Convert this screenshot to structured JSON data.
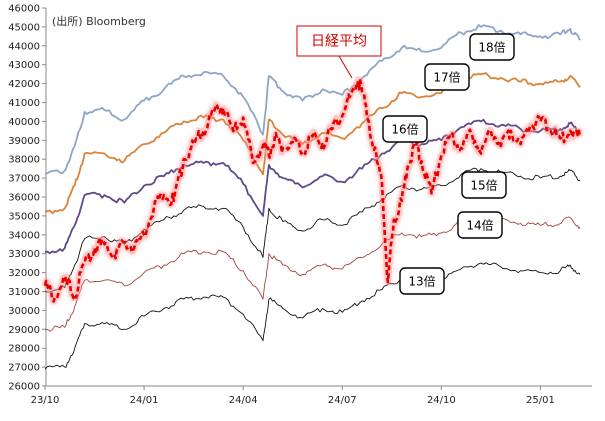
{
  "chart_data": {
    "type": "line",
    "source_note": "(出所) Bloomberg",
    "ylim": [
      26000,
      46000
    ],
    "yticks": [
      26000,
      27000,
      28000,
      29000,
      30000,
      31000,
      32000,
      33000,
      34000,
      35000,
      36000,
      37000,
      38000,
      39000,
      40000,
      41000,
      42000,
      43000,
      44000,
      45000,
      46000
    ],
    "xlim": [
      0,
      27.5
    ],
    "xticks": [
      {
        "label": "23/10",
        "x": 0
      },
      {
        "label": "24/01",
        "x": 5
      },
      {
        "label": "24/04",
        "x": 10
      },
      {
        "label": "24/07",
        "x": 15
      },
      {
        "label": "24/10",
        "x": 20
      },
      {
        "label": "25/01",
        "x": 25
      }
    ],
    "grid": false,
    "series": [
      {
        "name": "18倍",
        "color": "#8ea5c8",
        "width": 1.8,
        "points": [
          [
            0,
            37200
          ],
          [
            1,
            37400
          ],
          [
            1.5,
            38700
          ],
          [
            2,
            40500
          ],
          [
            3,
            40600
          ],
          [
            4,
            40100
          ],
          [
            5,
            41100
          ],
          [
            6,
            41700
          ],
          [
            7,
            42400
          ],
          [
            8,
            42600
          ],
          [
            9,
            42400
          ],
          [
            10,
            41300
          ],
          [
            11,
            39300
          ],
          [
            11.3,
            42400
          ],
          [
            12,
            41600
          ],
          [
            13,
            41100
          ],
          [
            14,
            41700
          ],
          [
            15,
            41400
          ],
          [
            16,
            42300
          ],
          [
            17,
            43200
          ],
          [
            18,
            43900
          ],
          [
            19,
            43700
          ],
          [
            20,
            43900
          ],
          [
            21,
            44700
          ],
          [
            22,
            45000
          ],
          [
            23,
            44800
          ],
          [
            24,
            44600
          ],
          [
            25,
            44500
          ],
          [
            26,
            44600
          ],
          [
            26.5,
            44900
          ],
          [
            27,
            44300
          ]
        ]
      },
      {
        "name": "17倍",
        "color": "#d9833b",
        "width": 1.8,
        "points": [
          [
            0,
            35200
          ],
          [
            1,
            35400
          ],
          [
            1.5,
            36600
          ],
          [
            2,
            38300
          ],
          [
            3,
            38300
          ],
          [
            4,
            37900
          ],
          [
            5,
            38800
          ],
          [
            6,
            39400
          ],
          [
            7,
            40000
          ],
          [
            8,
            40200
          ],
          [
            9,
            40100
          ],
          [
            10,
            39000
          ],
          [
            11,
            37200
          ],
          [
            11.3,
            40100
          ],
          [
            12,
            39300
          ],
          [
            13,
            38800
          ],
          [
            14,
            39400
          ],
          [
            15,
            39100
          ],
          [
            16,
            39900
          ],
          [
            17,
            40700
          ],
          [
            18,
            41500
          ],
          [
            19,
            41300
          ],
          [
            20,
            41500
          ],
          [
            21,
            42200
          ],
          [
            22,
            42500
          ],
          [
            23,
            42300
          ],
          [
            24,
            42100
          ],
          [
            25,
            42000
          ],
          [
            26,
            42100
          ],
          [
            26.5,
            42400
          ],
          [
            27,
            41800
          ]
        ]
      },
      {
        "name": "16倍",
        "color": "#5e4a8b",
        "width": 1.8,
        "points": [
          [
            0,
            33100
          ],
          [
            1,
            33300
          ],
          [
            1.5,
            34500
          ],
          [
            2,
            36100
          ],
          [
            3,
            36100
          ],
          [
            4,
            35700
          ],
          [
            5,
            36600
          ],
          [
            6,
            37100
          ],
          [
            7,
            37700
          ],
          [
            8,
            37800
          ],
          [
            9,
            37800
          ],
          [
            10,
            36700
          ],
          [
            11,
            35000
          ],
          [
            11.3,
            37700
          ],
          [
            12,
            37000
          ],
          [
            13,
            36500
          ],
          [
            14,
            37100
          ],
          [
            15,
            36800
          ],
          [
            16,
            37500
          ],
          [
            17,
            38300
          ],
          [
            18,
            39000
          ],
          [
            19,
            38800
          ],
          [
            20,
            39000
          ],
          [
            21,
            39700
          ],
          [
            22,
            40000
          ],
          [
            23,
            39800
          ],
          [
            24,
            39600
          ],
          [
            25,
            39500
          ],
          [
            26,
            39600
          ],
          [
            26.5,
            39900
          ],
          [
            27,
            39300
          ]
        ]
      },
      {
        "name": "15倍",
        "color": "#111111",
        "width": 0.9,
        "points": [
          [
            0,
            31000
          ],
          [
            1,
            31200
          ],
          [
            1.5,
            32400
          ],
          [
            2,
            33800
          ],
          [
            3,
            33900
          ],
          [
            4,
            33500
          ],
          [
            5,
            34300
          ],
          [
            6,
            34800
          ],
          [
            7,
            35300
          ],
          [
            8,
            35500
          ],
          [
            9,
            35400
          ],
          [
            10,
            34400
          ],
          [
            11,
            32800
          ],
          [
            11.3,
            35400
          ],
          [
            12,
            34700
          ],
          [
            13,
            34200
          ],
          [
            14,
            34800
          ],
          [
            15,
            34500
          ],
          [
            16,
            35200
          ],
          [
            17,
            35900
          ],
          [
            18,
            36600
          ],
          [
            19,
            36400
          ],
          [
            20,
            36600
          ],
          [
            21,
            37200
          ],
          [
            22,
            37500
          ],
          [
            23,
            37300
          ],
          [
            24,
            37100
          ],
          [
            25,
            37000
          ],
          [
            26,
            37100
          ],
          [
            26.5,
            37400
          ],
          [
            27,
            36900
          ]
        ]
      },
      {
        "name": "14倍",
        "color": "#a3453f",
        "width": 0.9,
        "points": [
          [
            0,
            29000
          ],
          [
            1,
            29100
          ],
          [
            1.5,
            30200
          ],
          [
            2,
            31600
          ],
          [
            3,
            31600
          ],
          [
            4,
            31300
          ],
          [
            5,
            32000
          ],
          [
            6,
            32400
          ],
          [
            7,
            33000
          ],
          [
            8,
            33100
          ],
          [
            9,
            33100
          ],
          [
            10,
            32100
          ],
          [
            11,
            30600
          ],
          [
            11.3,
            33000
          ],
          [
            12,
            32400
          ],
          [
            13,
            31900
          ],
          [
            14,
            32400
          ],
          [
            15,
            32200
          ],
          [
            16,
            32800
          ],
          [
            17,
            33500
          ],
          [
            18,
            34100
          ],
          [
            19,
            33900
          ],
          [
            20,
            34100
          ],
          [
            21,
            34700
          ],
          [
            22,
            35000
          ],
          [
            23,
            34800
          ],
          [
            24,
            34600
          ],
          [
            25,
            34500
          ],
          [
            26,
            34600
          ],
          [
            26.5,
            34900
          ],
          [
            27,
            34400
          ]
        ]
      },
      {
        "name": "13倍",
        "color": "#111111",
        "width": 0.9,
        "points": [
          [
            0,
            26900
          ],
          [
            1,
            27000
          ],
          [
            1.5,
            28000
          ],
          [
            2,
            29300
          ],
          [
            3,
            29300
          ],
          [
            4,
            29000
          ],
          [
            5,
            29700
          ],
          [
            6,
            30100
          ],
          [
            7,
            30600
          ],
          [
            8,
            30700
          ],
          [
            9,
            30700
          ],
          [
            10,
            29800
          ],
          [
            11,
            28400
          ],
          [
            11.3,
            30600
          ],
          [
            12,
            30100
          ],
          [
            13,
            29600
          ],
          [
            14,
            30100
          ],
          [
            15,
            29900
          ],
          [
            16,
            30500
          ],
          [
            17,
            31100
          ],
          [
            18,
            31700
          ],
          [
            19,
            31500
          ],
          [
            20,
            31700
          ],
          [
            21,
            32200
          ],
          [
            22,
            32500
          ],
          [
            23,
            32300
          ],
          [
            24,
            32100
          ],
          [
            25,
            32000
          ],
          [
            26,
            32100
          ],
          [
            26.5,
            32400
          ],
          [
            27,
            31900
          ]
        ]
      },
      {
        "name": "日経平均",
        "color": "#e60000",
        "width": 2.6,
        "dashed": true,
        "glow": true,
        "points": [
          [
            0,
            31300
          ],
          [
            0.5,
            30700
          ],
          [
            1,
            31600
          ],
          [
            1.5,
            30800
          ],
          [
            2,
            32500
          ],
          [
            2.5,
            33300
          ],
          [
            3,
            33500
          ],
          [
            3.5,
            33000
          ],
          [
            4,
            33600
          ],
          [
            4.5,
            33300
          ],
          [
            5,
            34000
          ],
          [
            5.5,
            35500
          ],
          [
            6,
            36100
          ],
          [
            6.5,
            35800
          ],
          [
            7,
            38000
          ],
          [
            7.5,
            38800
          ],
          [
            8,
            39500
          ],
          [
            8.5,
            40500
          ],
          [
            9,
            40700
          ],
          [
            9.5,
            39500
          ],
          [
            10,
            40200
          ],
          [
            10.5,
            37800
          ],
          [
            11,
            38700
          ],
          [
            11.3,
            38200
          ],
          [
            11.6,
            39200
          ],
          [
            12,
            38600
          ],
          [
            12.5,
            38900
          ],
          [
            13,
            38400
          ],
          [
            13.5,
            39200
          ],
          [
            14,
            38800
          ],
          [
            14.5,
            39600
          ],
          [
            15,
            40300
          ],
          [
            15.5,
            41600
          ],
          [
            15.8,
            42200
          ],
          [
            16.2,
            40800
          ],
          [
            16.6,
            38500
          ],
          [
            17,
            36800
          ],
          [
            17.3,
            31500
          ],
          [
            17.6,
            34800
          ],
          [
            18,
            35800
          ],
          [
            18.3,
            37600
          ],
          [
            18.7,
            38800
          ],
          [
            19,
            37900
          ],
          [
            19.5,
            36200
          ],
          [
            20,
            38200
          ],
          [
            20.5,
            39200
          ],
          [
            21,
            38600
          ],
          [
            21.5,
            39400
          ],
          [
            22,
            38300
          ],
          [
            22.5,
            39500
          ],
          [
            23,
            38700
          ],
          [
            23.5,
            39500
          ],
          [
            24,
            38800
          ],
          [
            24.5,
            39800
          ],
          [
            25,
            40000
          ],
          [
            25.5,
            39500
          ],
          [
            26,
            39100
          ],
          [
            26.5,
            39500
          ],
          [
            27,
            39200
          ]
        ]
      }
    ],
    "labels": [
      {
        "text": "18倍",
        "series": "18倍"
      },
      {
        "text": "17倍",
        "series": "17倍"
      },
      {
        "text": "16倍",
        "series": "16倍"
      },
      {
        "text": "15倍",
        "series": "15倍"
      },
      {
        "text": "14倍",
        "series": "14倍"
      },
      {
        "text": "13倍",
        "series": "13倍"
      },
      {
        "text": "日経平均",
        "series": "日経平均"
      }
    ]
  }
}
